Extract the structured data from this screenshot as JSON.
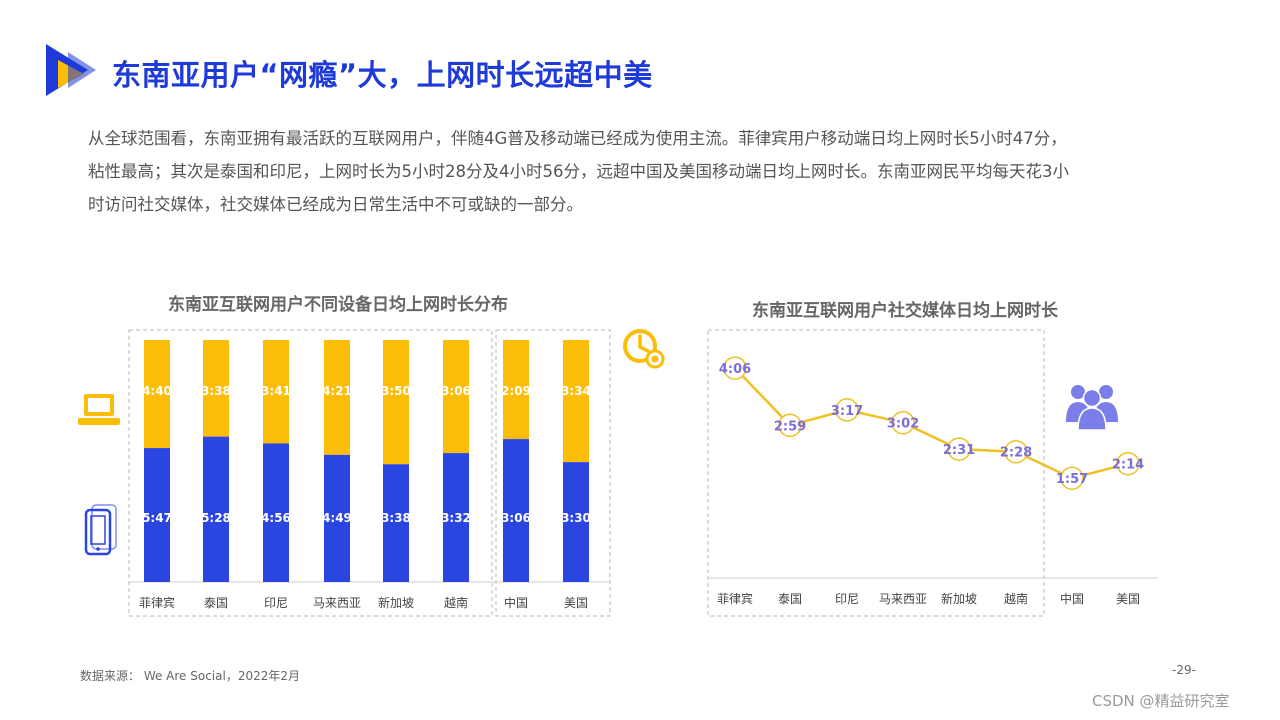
{
  "title": "东南亚用户“网瘾”大，上网时长远超中美",
  "intro_lines": [
    "从全球范围看，东南亚拥有最活跃的互联网用户，伴随4G普及移动端已经成为使用主流。菲律宾用户移动端日均上网时长5小时47分，",
    "粘性最高；其次是泰国和印尼，上网时长为5小时28分及4小时56分，远超中国及美国移动端日均上网时长。东南亚网民平均每天花3小",
    "时访问社交媒体，社交媒体已经成为日常生活中不可或缺的一部分。"
  ],
  "source": "数据来源： We Are Social，2022年2月",
  "page_number": "-29-",
  "watermark": "CSDN @精益研究室",
  "colors": {
    "title_blue": "#1e3ad8",
    "mobile_blue": "#2b45e0",
    "computer_yellow": "#fbbd08",
    "line_yellow": "#f1c022",
    "label_purple": "#7b6fd6",
    "people_icon": "#7b7ee8"
  },
  "icons": [
    "laptop-icon",
    "mobile-phone-icon",
    "clock-icon",
    "people-icon"
  ],
  "chart_data": [
    {
      "type": "bar",
      "stacked": true,
      "title": "东南亚互联网用户不同设备日均上网时长分布",
      "categories": [
        "菲律宾",
        "泰国",
        "印尼",
        "马来西亚",
        "新加坡",
        "越南",
        "中国",
        "美国"
      ],
      "series": [
        {
          "device": "mobile",
          "icon": "mobile-phone-icon",
          "color": "#2b45e0",
          "labels": [
            "5:47",
            "5:28",
            "4:56",
            "4:49",
            "3:38",
            "3:32",
            "3:06",
            "3:30"
          ],
          "minutes": [
            347,
            328,
            296,
            289,
            218,
            212,
            186,
            210
          ]
        },
        {
          "device": "computer",
          "icon": "laptop-icon",
          "color": "#fbbd08",
          "labels": [
            "4:40",
            "3:38",
            "3:41",
            "4:21",
            "3:50",
            "3:06",
            "2:09",
            "3:34"
          ],
          "minutes": [
            280,
            218,
            221,
            261,
            230,
            186,
            129,
            214
          ]
        }
      ],
      "display": "100% stacked (share of total daily time)",
      "groups": [
        [
          "菲律宾",
          "泰国",
          "印尼",
          "马来西亚",
          "新加坡",
          "越南"
        ],
        [
          "中国",
          "美国"
        ]
      ],
      "grid": false,
      "legend": "left (icons)"
    },
    {
      "type": "line",
      "title": "东南亚互联网用户社交媒体日均上网时长",
      "categories": [
        "菲律宾",
        "泰国",
        "印尼",
        "马来西亚",
        "新加坡",
        "越南",
        "中国",
        "美国"
      ],
      "labels": [
        "4:06",
        "2:59",
        "3:17",
        "3:02",
        "2:31",
        "2:28",
        "1:57",
        "2:14"
      ],
      "minutes": [
        246,
        179,
        197,
        182,
        151,
        148,
        117,
        134
      ],
      "ylim_minutes": [
        0,
        300
      ],
      "groups": [
        [
          "菲律宾",
          "泰国",
          "印尼",
          "马来西亚",
          "新加坡",
          "越南"
        ],
        [
          "中国",
          "美国"
        ]
      ],
      "grid": false,
      "legend": "none"
    }
  ]
}
